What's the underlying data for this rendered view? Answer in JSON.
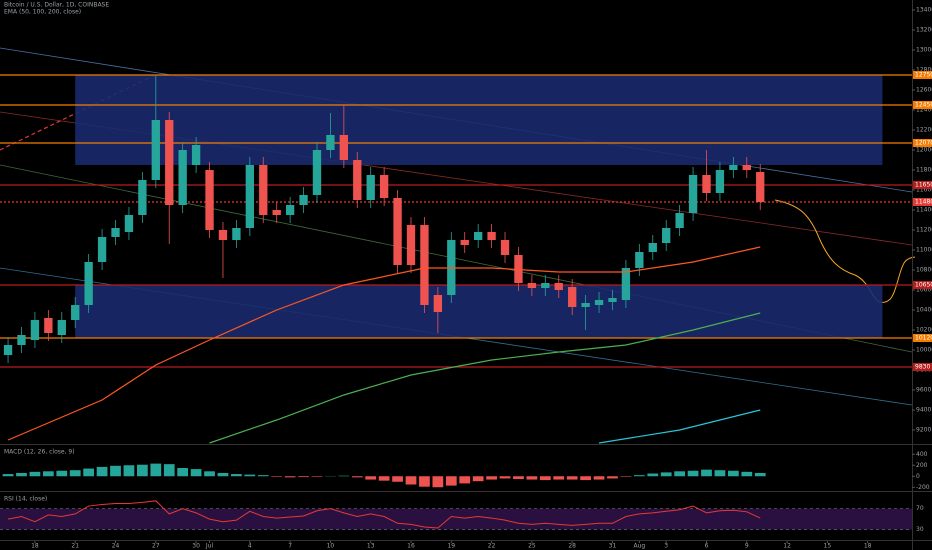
{
  "chart_data": [
    {
      "type": "candlestick",
      "title": "Bitcoin / U.S. Dollar, 1D, COINBASE",
      "subtitle": "EMA (50, 100, 200, close)",
      "xlim": [
        -0.6,
        67.3
      ],
      "xticks": [
        {
          "value": 2,
          "label": "18"
        },
        {
          "value": 5,
          "label": "21"
        },
        {
          "value": 8,
          "label": "24"
        },
        {
          "value": 11,
          "label": "27"
        },
        {
          "value": 14,
          "label": "30"
        },
        {
          "value": 15,
          "label": "Jul"
        },
        {
          "value": 18,
          "label": "4"
        },
        {
          "value": 21,
          "label": "7"
        },
        {
          "value": 24,
          "label": "10"
        },
        {
          "value": 27,
          "label": "13"
        },
        {
          "value": 30,
          "label": "16"
        },
        {
          "value": 33,
          "label": "19"
        },
        {
          "value": 36,
          "label": "22"
        },
        {
          "value": 39,
          "label": "25"
        },
        {
          "value": 42,
          "label": "28"
        },
        {
          "value": 45,
          "label": "31"
        },
        {
          "value": 47,
          "label": "Aug"
        },
        {
          "value": 49,
          "label": "3"
        },
        {
          "value": 52,
          "label": "6"
        },
        {
          "value": 55,
          "label": "9"
        },
        {
          "value": 58,
          "label": "12"
        },
        {
          "value": 61,
          "label": "15"
        },
        {
          "value": 64,
          "label": "18"
        }
      ],
      "ylim": [
        9070,
        13500
      ],
      "yticks": [
        9200,
        9400,
        9600,
        9800,
        10000,
        10200,
        10400,
        10600,
        10800,
        11000,
        11200,
        11400,
        11600,
        11800,
        12000,
        12200,
        12400,
        12600,
        12800,
        13000,
        13200,
        13400
      ],
      "up_color": "#26a69a",
      "down_color": "#ef5350",
      "open": [
        9950,
        10050,
        10100,
        10320,
        10150,
        10300,
        10450,
        10880,
        11130,
        11180,
        11350,
        11700,
        12300,
        11450,
        11850,
        11800,
        11200,
        11100,
        11220,
        11850,
        11400,
        11350,
        11450,
        11550,
        12000,
        12150,
        11900,
        11500,
        11750,
        11520,
        11250,
        11250,
        10550,
        10550,
        11100,
        11100,
        11180,
        11100,
        10950,
        10670,
        10620,
        10670,
        10630,
        10430,
        10450,
        10480,
        10500,
        10820,
        10980,
        11070,
        11220,
        11370,
        11750,
        11570,
        11800,
        11850,
        11780
      ],
      "high": [
        10130,
        10230,
        10380,
        10400,
        10380,
        10530,
        10960,
        11210,
        11300,
        11430,
        11780,
        12750,
        12380,
        12080,
        12130,
        11880,
        11280,
        11300,
        11930,
        11930,
        11480,
        11530,
        11630,
        12080,
        12370,
        12450,
        11980,
        11830,
        11830,
        11600,
        11330,
        11330,
        10630,
        11180,
        11180,
        11260,
        11260,
        11180,
        11030,
        10750,
        10750,
        10750,
        10710,
        10550,
        10580,
        10600,
        10900,
        11060,
        11150,
        11300,
        11450,
        11830,
        12000,
        11880,
        11930,
        11930,
        11860
      ],
      "low": [
        9870,
        9970,
        10020,
        10090,
        10070,
        10220,
        10370,
        10800,
        11050,
        11100,
        11270,
        11620,
        11060,
        11370,
        11770,
        11120,
        10720,
        11020,
        11140,
        11270,
        11270,
        11270,
        11370,
        11470,
        11920,
        11820,
        11420,
        11420,
        11440,
        10770,
        10770,
        10370,
        10170,
        10470,
        10970,
        11020,
        11020,
        10870,
        10590,
        10540,
        10540,
        10520,
        10350,
        10200,
        10370,
        10400,
        10420,
        10740,
        10900,
        10990,
        11140,
        11290,
        11490,
        11490,
        11720,
        11720,
        11400
      ],
      "close": [
        10050,
        10150,
        10300,
        10170,
        10300,
        10450,
        10880,
        11130,
        11220,
        11350,
        11700,
        12300,
        11450,
        12000,
        12050,
        11200,
        11100,
        11220,
        11850,
        11350,
        11350,
        11450,
        11550,
        12000,
        12150,
        11900,
        11500,
        11750,
        11520,
        10850,
        10850,
        10450,
        10380,
        11100,
        11050,
        11180,
        11100,
        10950,
        10670,
        10620,
        10670,
        10600,
        10430,
        10470,
        10500,
        10520,
        10820,
        10980,
        11070,
        11220,
        11370,
        11750,
        11570,
        11800,
        11850,
        11800,
        11480
      ],
      "zones": [
        {
          "from": 5,
          "to": 65.1,
          "top": 12750,
          "bottom": 11850,
          "color": "#1a2a6e"
        },
        {
          "from": 5,
          "to": 65.1,
          "top": 10650,
          "bottom": 10120,
          "color": "#1a2a6e"
        }
      ],
      "levels": [
        {
          "value": 12750,
          "color": "#f57c00"
        },
        {
          "value": 12450,
          "color": "#f57c00"
        },
        {
          "value": 12070,
          "color": "#f57c00"
        },
        {
          "value": 11650,
          "color": "#b71c1c"
        },
        {
          "value": 11480,
          "color": "#e53935",
          "dash": true
        },
        {
          "value": 10650,
          "color": "#b71c1c"
        },
        {
          "value": 10120,
          "color": "#f57c00"
        },
        {
          "value": 9830,
          "color": "#b71c1c"
        }
      ],
      "series": [
        {
          "color": "#ff5722",
          "x": [
            0,
            7,
            11,
            15,
            20,
            25,
            31,
            36,
            41,
            46,
            51,
            56
          ],
          "values": [
            9100,
            9500,
            9850,
            10100,
            10400,
            10650,
            10820,
            10820,
            10780,
            10780,
            10880,
            11030
          ]
        },
        {
          "color": "#4caf50",
          "x": [
            15,
            20,
            25,
            30,
            36,
            41,
            46,
            51,
            56
          ],
          "values": [
            9070,
            9300,
            9550,
            9750,
            9900,
            9980,
            10050,
            10200,
            10370
          ]
        },
        {
          "color": "#26c6da",
          "x": [
            44,
            50,
            56
          ],
          "values": [
            9070,
            9200,
            9400
          ]
        }
      ]
    },
    {
      "type": "bar",
      "title": "MACD (12, 26, close, 9)",
      "ylim": [
        -250,
        550
      ],
      "yticks": [
        -200,
        0,
        200,
        400
      ],
      "color": "#26a69a",
      "negative_color": "#ef5350",
      "values": [
        40,
        60,
        80,
        90,
        100,
        110,
        140,
        170,
        190,
        200,
        210,
        230,
        220,
        150,
        130,
        90,
        60,
        40,
        30,
        20,
        -10,
        -20,
        -15,
        -10,
        5,
        10,
        -20,
        -60,
        -80,
        -100,
        -150,
        -190,
        -200,
        -170,
        -130,
        -90,
        -60,
        -40,
        -50,
        -60,
        -70,
        -60,
        -60,
        -70,
        -60,
        -40,
        -10,
        20,
        50,
        70,
        90,
        100,
        120,
        110,
        100,
        80,
        60
      ]
    },
    {
      "type": "line",
      "title": "RSI (14, close)",
      "ylim": [
        10,
        100
      ],
      "yticks": [
        30,
        70
      ],
      "color": "#e53935",
      "band_color": "#2a1040",
      "values": [
        50,
        55,
        45,
        58,
        55,
        60,
        75,
        78,
        80,
        80,
        82,
        85,
        60,
        70,
        62,
        50,
        45,
        48,
        65,
        55,
        52,
        54,
        56,
        66,
        70,
        62,
        55,
        60,
        55,
        42,
        40,
        35,
        33,
        55,
        52,
        55,
        52,
        48,
        42,
        40,
        42,
        40,
        38,
        40,
        42,
        42,
        55,
        60,
        62,
        65,
        68,
        75,
        62,
        66,
        67,
        64,
        52
      ]
    }
  ]
}
